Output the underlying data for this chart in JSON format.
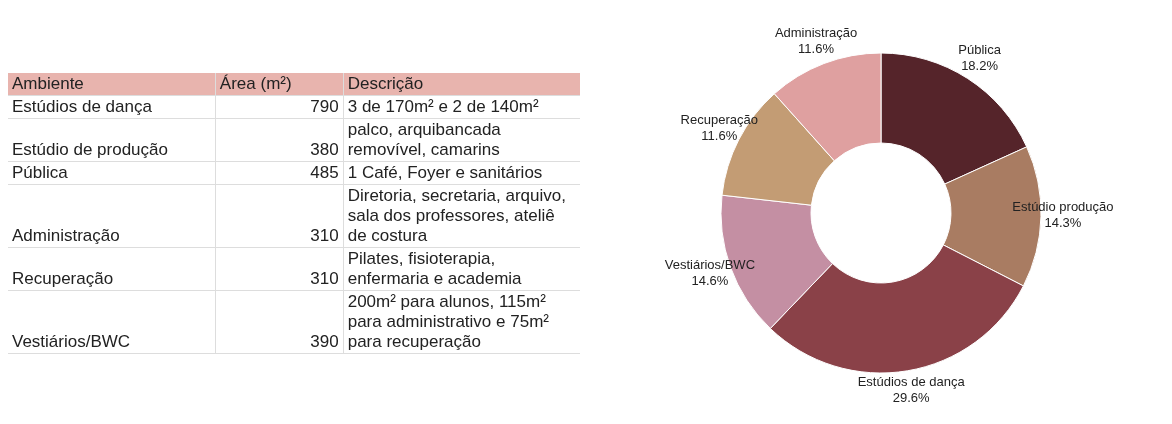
{
  "chart_data": [
    {
      "type": "other",
      "annotations": [
        "Ambiente",
        "Área (m²)",
        "Descrição",
        "Estúdios de dança",
        "790",
        "3 de 170m² e 2 de 140m²",
        "Estúdio de produção",
        "380",
        "palco, arquibancada removível, camarins",
        "Pública",
        "485",
        "1 Café, Foyer e sanitários",
        "Administração",
        "310",
        "Diretoria, secretaria, arquivo, sala dos professores, ateliê de costura",
        "Recuperação",
        "310",
        "Pilates, fisioterapia, enfermaria e academia",
        "Vestiários/BWC",
        "390",
        "200m² para alunos, 115m² para administrativo e 75m² para recuperação"
      ]
    },
    {
      "type": "donut",
      "categories": [
        "Pública",
        "Estúdio produção",
        "Estúdios de dança",
        "Vestiários/BWC",
        "Recuperação",
        "Administração"
      ],
      "values": [
        18.2,
        14.3,
        29.6,
        14.6,
        11.6,
        11.6
      ],
      "value_labels": [
        "18.2%",
        "14.3%",
        "29.6%",
        "14.6%",
        "11.6%",
        "11.6%"
      ],
      "colors": [
        "#55242a",
        "#a97c62",
        "#8a4148",
        "#c48fa3",
        "#c39c74",
        "#dfa0a0"
      ],
      "legend": false
    }
  ]
}
